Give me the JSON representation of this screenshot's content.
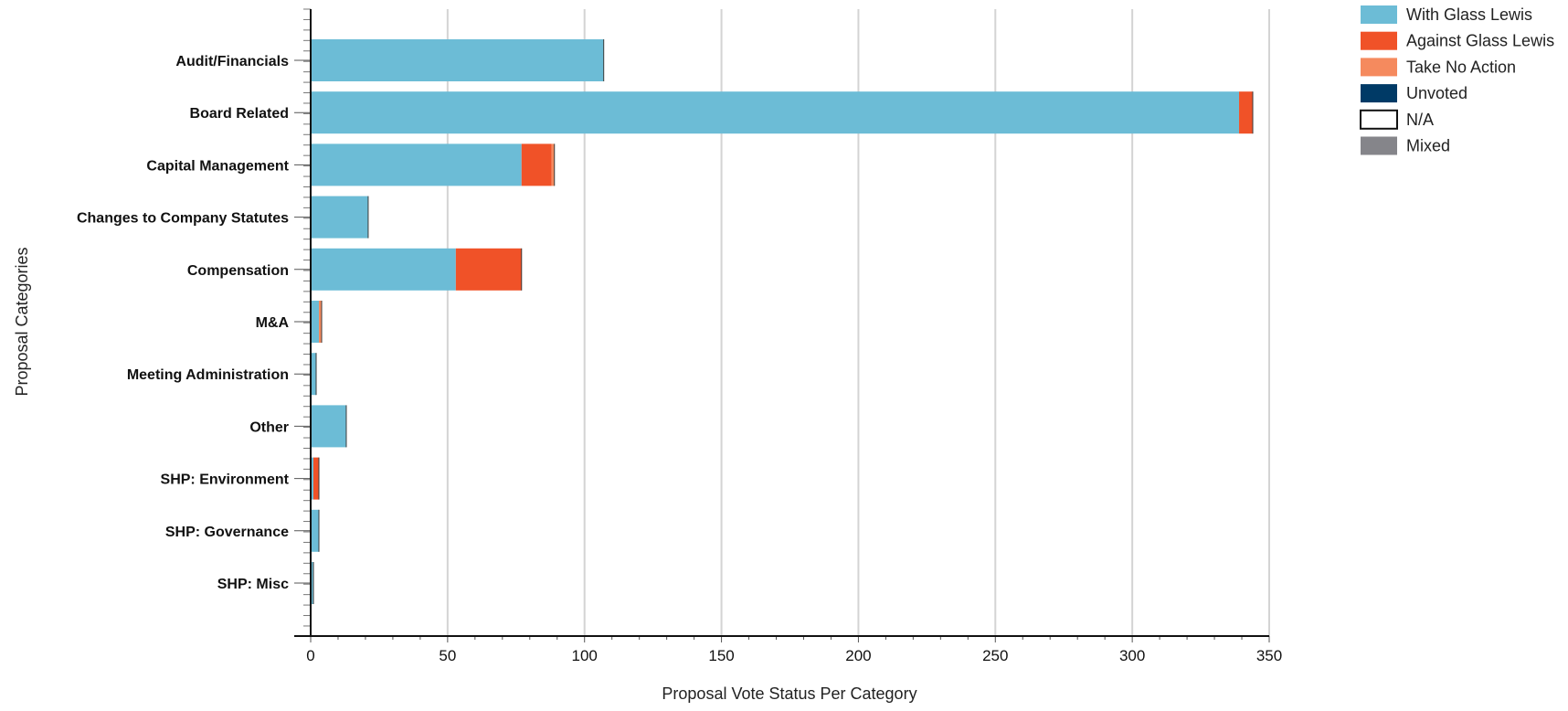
{
  "chart_data": {
    "type": "bar",
    "orientation": "horizontal",
    "stacked": true,
    "xlabel": "Proposal Vote Status Per Category",
    "ylabel": "Proposal Categories",
    "xlim": [
      0,
      350
    ],
    "xticks": [
      0,
      50,
      100,
      150,
      200,
      250,
      300,
      350
    ],
    "grid": "vertical",
    "legend_position": "top-right",
    "categories": [
      "Audit/Financials",
      "Board Related",
      "Capital Management",
      "Changes to Company Statutes",
      "Compensation",
      "M&A",
      "Meeting Administration",
      "Other",
      "SHP: Environment",
      "SHP: Governance",
      "SHP: Misc"
    ],
    "series": [
      {
        "name": "With Glass Lewis",
        "color": "#6cbcd6",
        "values": [
          107,
          339,
          77,
          21,
          53,
          3,
          2,
          13,
          1,
          3,
          1
        ]
      },
      {
        "name": "Against Glass Lewis",
        "color": "#f05228",
        "values": [
          0,
          5,
          11,
          0,
          24,
          0,
          0,
          0,
          2,
          0,
          0
        ]
      },
      {
        "name": "Take No Action",
        "color": "#f58a5e",
        "values": [
          0,
          0,
          1,
          0,
          0,
          1,
          0,
          0,
          0,
          0,
          0
        ]
      },
      {
        "name": "Unvoted",
        "color": "#003a66",
        "values": [
          0,
          0,
          0,
          0,
          0,
          0,
          0,
          0,
          0,
          0,
          0
        ]
      },
      {
        "name": "N/A",
        "color": "#ffffff",
        "outline": "#111111",
        "values": [
          0,
          0,
          0,
          0,
          0,
          0,
          0,
          0,
          0,
          0,
          0
        ]
      },
      {
        "name": "Mixed",
        "color": "#85858a",
        "values": [
          0,
          0,
          0,
          0,
          0,
          0,
          0,
          0,
          0,
          0,
          0
        ]
      }
    ]
  }
}
